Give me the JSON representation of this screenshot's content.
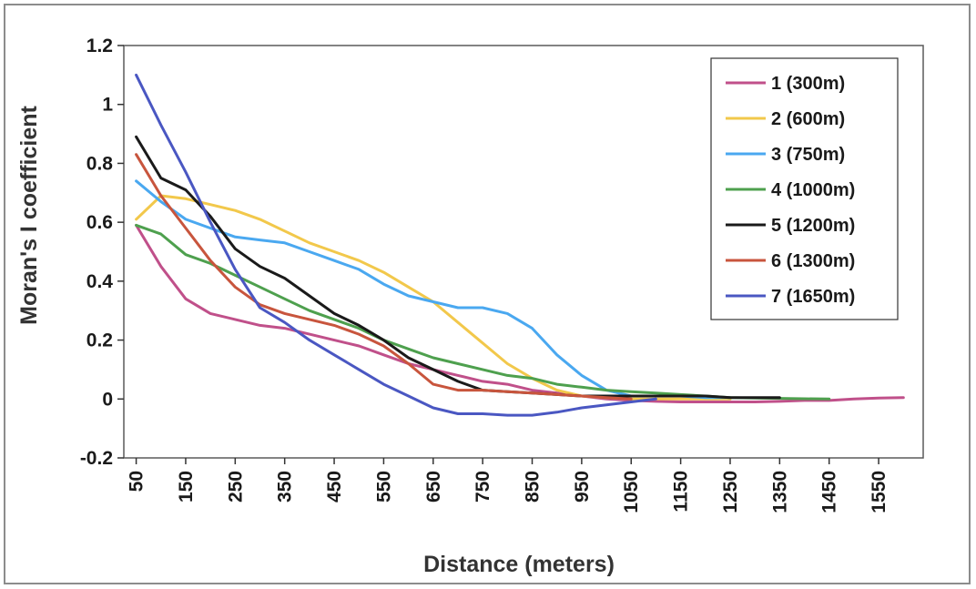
{
  "chart_data": {
    "type": "line",
    "title": "",
    "xlabel": "Distance (meters)",
    "ylabel": "Moran's I coefficient",
    "xlim": [
      50,
      1600
    ],
    "ylim": [
      -0.2,
      1.2
    ],
    "x_ticks": [
      "50",
      "150",
      "250",
      "350",
      "450",
      "550",
      "650",
      "750",
      "850",
      "950",
      "1050",
      "1150",
      "1250",
      "1350",
      "1450",
      "1550"
    ],
    "y_ticks": [
      "-0.2",
      "0",
      "0.2",
      "0.4",
      "0.6",
      "0.8",
      "1",
      "1.2"
    ],
    "grid": false,
    "legend_position": "top-right",
    "series": [
      {
        "name": "1 (300m)",
        "color": "#c0508a",
        "x": [
          50,
          100,
          150,
          200,
          250,
          300,
          350,
          400,
          450,
          500,
          550,
          600,
          650,
          700,
          750,
          800,
          850,
          900,
          950,
          1000,
          1050,
          1100,
          1150,
          1200,
          1250,
          1300,
          1350,
          1400,
          1450,
          1500,
          1550,
          1600
        ],
        "y": [
          0.59,
          0.45,
          0.34,
          0.29,
          0.27,
          0.25,
          0.24,
          0.22,
          0.2,
          0.18,
          0.15,
          0.12,
          0.1,
          0.08,
          0.06,
          0.05,
          0.03,
          0.02,
          0.01,
          0.0,
          -0.005,
          -0.008,
          -0.01,
          -0.01,
          -0.01,
          -0.01,
          -0.008,
          -0.005,
          -0.005,
          0.0,
          0.003,
          0.005
        ]
      },
      {
        "name": "2 (600m)",
        "color": "#f2c84b",
        "x": [
          50,
          100,
          150,
          200,
          250,
          300,
          350,
          400,
          450,
          500,
          550,
          600,
          650,
          700,
          750,
          800,
          850,
          900,
          950,
          1000,
          1050,
          1100,
          1150,
          1200,
          1250
        ],
        "y": [
          0.61,
          0.69,
          0.68,
          0.66,
          0.64,
          0.61,
          0.57,
          0.53,
          0.5,
          0.47,
          0.43,
          0.38,
          0.33,
          0.26,
          0.19,
          0.12,
          0.07,
          0.03,
          0.01,
          0.005,
          0.0,
          0.0,
          0.0,
          0.0,
          0.0
        ]
      },
      {
        "name": "3 (750m)",
        "color": "#4aa8f0",
        "x": [
          50,
          100,
          150,
          200,
          250,
          300,
          350,
          400,
          450,
          500,
          550,
          600,
          650,
          700,
          750,
          800,
          850,
          900,
          950,
          1000,
          1050,
          1100,
          1150,
          1200,
          1250
        ],
        "y": [
          0.74,
          0.67,
          0.61,
          0.58,
          0.55,
          0.54,
          0.53,
          0.5,
          0.47,
          0.44,
          0.39,
          0.35,
          0.33,
          0.31,
          0.31,
          0.29,
          0.24,
          0.15,
          0.08,
          0.03,
          0.01,
          0.01,
          0.01,
          0.005,
          0.005
        ]
      },
      {
        "name": "4 (1000m)",
        "color": "#4ea04e",
        "x": [
          50,
          100,
          150,
          200,
          250,
          300,
          350,
          400,
          450,
          500,
          550,
          600,
          650,
          700,
          750,
          800,
          850,
          900,
          950,
          1000,
          1050,
          1100,
          1150,
          1200,
          1250,
          1300,
          1350,
          1400,
          1450
        ],
        "y": [
          0.59,
          0.56,
          0.49,
          0.46,
          0.42,
          0.38,
          0.34,
          0.3,
          0.27,
          0.24,
          0.2,
          0.17,
          0.14,
          0.12,
          0.1,
          0.08,
          0.07,
          0.05,
          0.04,
          0.03,
          0.025,
          0.02,
          0.015,
          0.01,
          0.005,
          0.003,
          0.002,
          0.001,
          0.0
        ]
      },
      {
        "name": "5 (1200m)",
        "color": "#1a1a1a",
        "x": [
          50,
          100,
          150,
          200,
          250,
          300,
          350,
          400,
          450,
          500,
          550,
          600,
          650,
          700,
          750,
          800,
          850,
          900,
          950,
          1000,
          1050,
          1100,
          1150,
          1200,
          1250,
          1300,
          1350
        ],
        "y": [
          0.89,
          0.75,
          0.71,
          0.62,
          0.51,
          0.45,
          0.41,
          0.35,
          0.29,
          0.25,
          0.2,
          0.14,
          0.1,
          0.06,
          0.03,
          0.025,
          0.02,
          0.015,
          0.01,
          0.01,
          0.01,
          0.01,
          0.01,
          0.01,
          0.005,
          0.005,
          0.005
        ]
      },
      {
        "name": "6 (1300m)",
        "color": "#c8553d",
        "x": [
          50,
          100,
          150,
          200,
          250,
          300,
          350,
          400,
          450,
          500,
          550,
          600,
          650,
          700,
          750,
          800,
          850,
          900,
          950,
          1000,
          1050
        ],
        "y": [
          0.83,
          0.69,
          0.58,
          0.47,
          0.38,
          0.32,
          0.29,
          0.27,
          0.25,
          0.22,
          0.18,
          0.12,
          0.05,
          0.03,
          0.03,
          0.025,
          0.02,
          0.015,
          0.01,
          0.005,
          0.0
        ]
      },
      {
        "name": "7 (1650m)",
        "color": "#4a57c2",
        "x": [
          50,
          100,
          150,
          200,
          250,
          300,
          350,
          400,
          450,
          500,
          550,
          600,
          650,
          700,
          750,
          800,
          850,
          900,
          950,
          1000,
          1050,
          1100
        ],
        "y": [
          1.1,
          0.93,
          0.77,
          0.6,
          0.44,
          0.31,
          0.26,
          0.2,
          0.15,
          0.1,
          0.05,
          0.01,
          -0.03,
          -0.05,
          -0.05,
          -0.055,
          -0.055,
          -0.045,
          -0.03,
          -0.02,
          -0.01,
          0.0
        ]
      }
    ]
  }
}
